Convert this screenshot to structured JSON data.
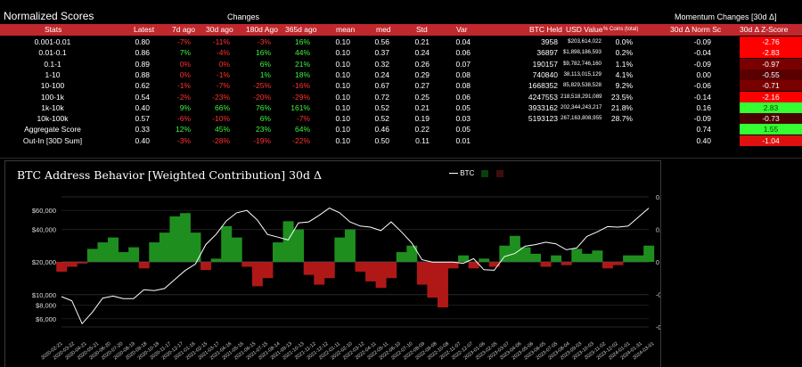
{
  "titles": {
    "main": "Normalized Scores",
    "changes": "Changes",
    "momentum": "Momentum Changes [30d Δ]"
  },
  "headers": {
    "stats": "Stats",
    "latest": "Latest",
    "d7": "7d ago",
    "d30": "30d ago",
    "d180": "180d Ago",
    "d365": "365d ago",
    "mean": "mean",
    "med": "med",
    "std": "Std",
    "var": "Var",
    "btc_held": "BTC Held",
    "usd_value": "USD Value",
    "pct_coins": "% Coins (total)",
    "norm": "30d Δ Norm Sc",
    "zscore": "30d Δ Z-Score"
  },
  "rows": [
    {
      "stat": "0.001-0.01",
      "latest": "0.80",
      "d7": "-7%",
      "d30": "-11%",
      "d180": "-3%",
      "d365": "16%",
      "mean": "0.10",
      "med": "0.56",
      "std": "0.21",
      "var": "0.04",
      "btc": "3958",
      "usd": "$203,614,022",
      "pct": "0.0%",
      "norm": "-0.09",
      "z": "-2.76"
    },
    {
      "stat": "0.01-0.1",
      "latest": "0.86",
      "d7": "7%",
      "d30": "-4%",
      "d180": "16%",
      "d365": "44%",
      "mean": "0.10",
      "med": "0.37",
      "std": "0.24",
      "var": "0.06",
      "btc": "36897",
      "usd": "$1,898,186,593",
      "pct": "0.2%",
      "norm": "-0.04",
      "z": "-2.83"
    },
    {
      "stat": "0.1-1",
      "latest": "0.89",
      "d7": "0%",
      "d30": "0%",
      "d180": "6%",
      "d365": "21%",
      "mean": "0.10",
      "med": "0.32",
      "std": "0.26",
      "var": "0.07",
      "btc": "190157",
      "usd": "$9,782,746,160",
      "pct": "1.1%",
      "norm": "-0.09",
      "z": "-0.97"
    },
    {
      "stat": "1-10",
      "latest": "0.88",
      "d7": "0%",
      "d30": "-1%",
      "d180": "1%",
      "d365": "18%",
      "mean": "0.10",
      "med": "0.24",
      "std": "0.29",
      "var": "0.08",
      "btc": "740840",
      "usd": "38,113,015,129",
      "pct": "4.1%",
      "norm": "0.00",
      "z": "-0.55"
    },
    {
      "stat": "10-100",
      "latest": "0.62",
      "d7": "-1%",
      "d30": "-7%",
      "d180": "-25%",
      "d365": "-16%",
      "mean": "0.10",
      "med": "0.67",
      "std": "0.27",
      "var": "0.08",
      "btc": "1668352",
      "usd": "85,829,538,528",
      "pct": "9.2%",
      "norm": "-0.06",
      "z": "-0.71"
    },
    {
      "stat": "100-1k",
      "latest": "0.54",
      "d7": "-2%",
      "d30": "-23%",
      "d180": "-20%",
      "d365": "-29%",
      "mean": "0.10",
      "med": "0.72",
      "std": "0.25",
      "var": "0.06",
      "btc": "4247553",
      "usd": "218,518,291,089",
      "pct": "23.5%",
      "norm": "-0.14",
      "z": "-2.16"
    },
    {
      "stat": "1k-10k",
      "latest": "0.40",
      "d7": "9%",
      "d30": "66%",
      "d180": "76%",
      "d365": "161%",
      "mean": "0.10",
      "med": "0.52",
      "std": "0.21",
      "var": "0.05",
      "btc": "3933162",
      "usd": "202,344,243,217",
      "pct": "21.8%",
      "norm": "0.16",
      "z": "2.83"
    },
    {
      "stat": "10k-100k",
      "latest": "0.57",
      "d7": "-6%",
      "d30": "-10%",
      "d180": "6%",
      "d365": "-7%",
      "mean": "0.10",
      "med": "0.52",
      "std": "0.19",
      "var": "0.03",
      "btc": "5193123",
      "usd": "267,163,808,955",
      "pct": "28.7%",
      "norm": "-0.09",
      "z": "-0.73"
    },
    {
      "stat": "Aggregate Score",
      "latest": "0.33",
      "d7": "12%",
      "d30": "45%",
      "d180": "23%",
      "d365": "64%",
      "mean": "0.10",
      "med": "0.46",
      "std": "0.22",
      "var": "0.05",
      "btc": "",
      "usd": "",
      "pct": "",
      "norm": "0.74",
      "z": "1.55"
    },
    {
      "stat": "Out-In [30D Sum]",
      "latest": "0.40",
      "d7": "-3%",
      "d30": "-28%",
      "d180": "-19%",
      "d365": "-22%",
      "mean": "0.10",
      "med": "0.50",
      "std": "0.11",
      "var": "0.01",
      "btc": "",
      "usd": "",
      "pct": "",
      "norm": "0.40",
      "z": "-1.04"
    }
  ],
  "zcolors": [
    "#ff0000",
    "#ff0000",
    "#7a0000",
    "#5a0000",
    "#7a0000",
    "#ff0000",
    "#33ff33",
    "#4d0000",
    "#33ff33",
    "#e01010"
  ],
  "chart_data": {
    "type": "line",
    "title": "BTC Address Behavior [Weighted Contribution] 30d Δ",
    "legend": [
      "BTC"
    ],
    "y_left_ticks": [
      "$60,000",
      "$40,000",
      "$20,000",
      "$10,000",
      "$8,000",
      "$6,000"
    ],
    "y_right_ticks": [
      "0.04",
      "0.02",
      "0",
      "-0.02",
      "-0.04"
    ],
    "x_ticks": [
      "2020-02-21",
      "2020-03-22",
      "2020-04-21",
      "2020-05-21",
      "2020-06-20",
      "2020-07-20",
      "2020-08-19",
      "2020-09-18",
      "2020-10-18",
      "2020-11-17",
      "2020-12-17",
      "2021-01-16",
      "2021-02-15",
      "2021-03-17",
      "2021-04-16",
      "2021-05-16",
      "2021-06-15",
      "2021-07-15",
      "2021-08-14",
      "2021-09-13",
      "2021-10-13",
      "2021-11-12",
      "2021-12-12",
      "2022-01-11",
      "2022-02-10",
      "2022-03-12",
      "2022-04-11",
      "2022-05-11",
      "2022-06-10",
      "2022-07-10",
      "2022-08-09",
      "2022-09-08",
      "2022-10-08",
      "2022-11-07",
      "2022-12-07",
      "2023-01-06",
      "2023-02-05",
      "2023-03-07",
      "2023-04-06",
      "2023-05-06",
      "2023-06-05",
      "2023-07-05",
      "2023-08-04",
      "2023-09-03",
      "2023-10-03",
      "2023-11-02",
      "2023-12-02",
      "2024-01-01",
      "2024-01-31",
      "2024-03-01"
    ],
    "btc_price": [
      9600,
      8800,
      5400,
      6900,
      9300,
      9700,
      9200,
      9200,
      11100,
      10900,
      11400,
      13800,
      16700,
      19200,
      29000,
      36000,
      48000,
      57000,
      60000,
      49000,
      36000,
      34000,
      32000,
      46000,
      47000,
      54000,
      63000,
      57000,
      47000,
      43000,
      42000,
      39000,
      47000,
      38000,
      30000,
      21000,
      20000,
      20000,
      20000,
      19500,
      21500,
      17000,
      16800,
      22500,
      24000,
      28000,
      29000,
      30500,
      29500,
      26000,
      27000,
      34500,
      38000,
      42500,
      42000,
      43000,
      52000,
      63000
    ],
    "contribution": [
      -0.006,
      -0.003,
      -0.001,
      0.008,
      0.012,
      0.015,
      0.006,
      0.009,
      -0.004,
      0.012,
      0.018,
      0.028,
      0.03,
      0.018,
      -0.005,
      0.002,
      0.022,
      0.015,
      -0.003,
      -0.015,
      -0.01,
      0.012,
      0.025,
      0.02,
      -0.008,
      -0.014,
      -0.01,
      0.015,
      0.02,
      -0.006,
      -0.012,
      -0.016,
      -0.01,
      0.006,
      0.01,
      -0.014,
      -0.022,
      -0.028,
      -0.004,
      0.004,
      -0.004,
      0.002,
      -0.003,
      0.01,
      0.016,
      0.009,
      0.005,
      -0.003,
      0.004,
      -0.002,
      0.008,
      0.005,
      0.007,
      -0.004,
      -0.002,
      0.004,
      0.004,
      0.01
    ],
    "y_scale": "log"
  }
}
